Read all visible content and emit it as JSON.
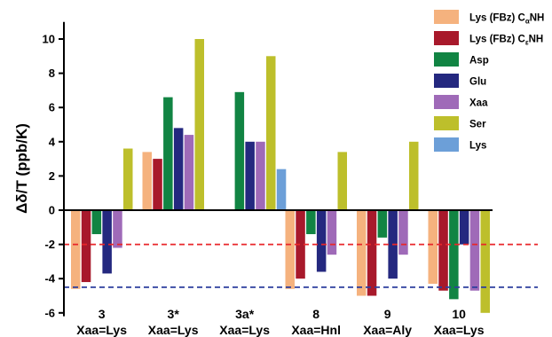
{
  "chart_data": {
    "type": "bar",
    "ylabel": "Δδ/T (ppb/K)",
    "ylim": [
      -6.2,
      11
    ],
    "yticks": [
      -6,
      -4,
      -2,
      0,
      2,
      4,
      6,
      8,
      10
    ],
    "grid": false,
    "legend_position": "top-right",
    "categories": [
      {
        "name": "3",
        "sub": "Xaa=Lys"
      },
      {
        "name": "3*",
        "sub": "Xaa=Lys"
      },
      {
        "name": "3a*",
        "sub": "Xaa=Lys"
      },
      {
        "name": "8",
        "sub": "Xaa=Hnl"
      },
      {
        "name": "9",
        "sub": "Xaa=Aly"
      },
      {
        "name": "10",
        "sub": "Xaa=Lys"
      }
    ],
    "series": [
      {
        "name": "Lys (FBz) CαNH",
        "label_main": "Lys (FBz) C",
        "label_sub": "α",
        "label_end": "NH",
        "color": "#F5B27E",
        "values": [
          -4.6,
          3.4,
          null,
          -4.6,
          -5.0,
          -4.3
        ]
      },
      {
        "name": "Lys (FBz) CεNH",
        "label_main": "Lys (FBz) C",
        "label_sub": "ε",
        "label_end": "NH",
        "color": "#A8192B",
        "values": [
          -4.2,
          3.0,
          null,
          -4.0,
          -5.0,
          -4.7
        ]
      },
      {
        "name": "Asp",
        "label_main": "Asp",
        "color": "#118443",
        "values": [
          -1.4,
          6.6,
          6.9,
          -1.4,
          -1.6,
          -5.2
        ]
      },
      {
        "name": "Glu",
        "label_main": "Glu",
        "color": "#24287F",
        "values": [
          -3.7,
          4.8,
          4.0,
          -3.6,
          -4.0,
          -2.0
        ]
      },
      {
        "name": "Xaa",
        "label_main": "Xaa",
        "color": "#9F6AB8",
        "values": [
          -2.2,
          4.4,
          4.0,
          -2.6,
          -2.6,
          -4.7
        ]
      },
      {
        "name": "Ser",
        "label_main": "Ser",
        "color": "#BDBF2B",
        "values": [
          3.6,
          10.0,
          9.0,
          3.4,
          4.0,
          -6.0
        ]
      },
      {
        "name": "Lys",
        "label_main": "Lys",
        "color": "#6C9FD8",
        "values": [
          null,
          null,
          2.4,
          null,
          null,
          null
        ]
      }
    ],
    "reference_lines": [
      {
        "y": -2.0,
        "color": "#E8262A",
        "style": "dashed"
      },
      {
        "y": -4.5,
        "color": "#2C3E9E",
        "style": "dashed"
      }
    ]
  }
}
